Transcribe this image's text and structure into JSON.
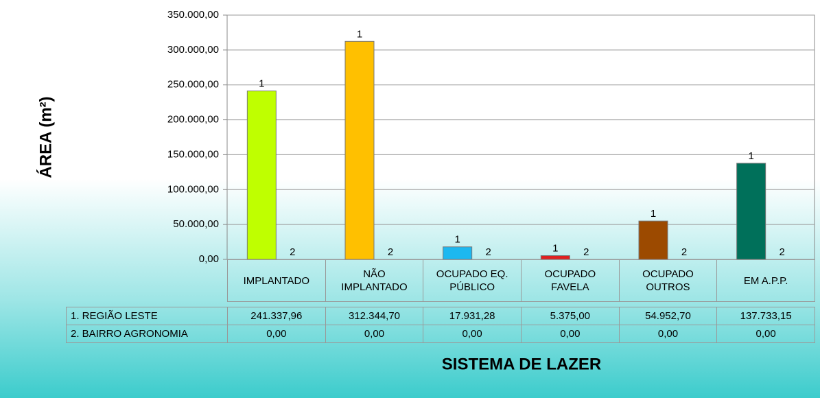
{
  "chart_data": {
    "type": "bar",
    "x_label": "SISTEMA DE LAZER",
    "y_label": "ÁREA (m²)",
    "categories": [
      "IMPLANTADO",
      "NÃO IMPLANTADO",
      "OCUPADO EQ. PÚBLICO",
      "OCUPADO FAVELA",
      "OCUPADO OUTROS",
      "EM A.P.P."
    ],
    "series": [
      {
        "name": "1. REGIÃO LESTE",
        "bar_label": "1",
        "colors": [
          "#bfff00",
          "#ffc000",
          "#1cb8f0",
          "#e02020",
          "#9c4a00",
          "#00705a"
        ],
        "values": [
          241337.96,
          312344.7,
          17931.28,
          5375.0,
          54952.7,
          137733.15
        ],
        "value_labels": [
          "241.337,96",
          "312.344,70",
          "17.931,28",
          "5.375,00",
          "54.952,70",
          "137.733,15"
        ]
      },
      {
        "name": "2. BAIRRO AGRONOMIA",
        "bar_label": "2",
        "values": [
          0,
          0,
          0,
          0,
          0,
          0
        ],
        "value_labels": [
          "0,00",
          "0,00",
          "0,00",
          "0,00",
          "0,00",
          "0,00"
        ]
      }
    ],
    "ylim": [
      0,
      350000
    ],
    "yticks": [
      {
        "value": 0,
        "label": "0,00"
      },
      {
        "value": 50000,
        "label": "50.000,00"
      },
      {
        "value": 100000,
        "label": "100.000,00"
      },
      {
        "value": 150000,
        "label": "150.000,00"
      },
      {
        "value": 200000,
        "label": "200.000,00"
      },
      {
        "value": 250000,
        "label": "250.000,00"
      },
      {
        "value": 300000,
        "label": "300.000,00"
      },
      {
        "value": 350000,
        "label": "350.000,00"
      }
    ],
    "grid": true
  }
}
